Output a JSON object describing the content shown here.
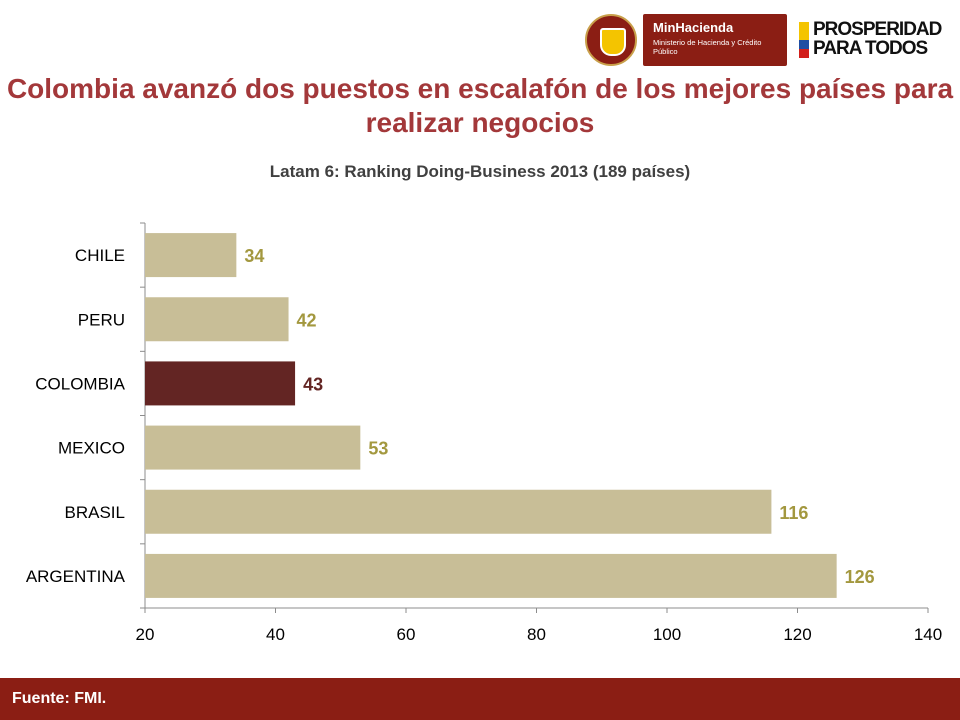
{
  "header": {
    "ministry_name": "MinHacienda",
    "ministry_sub": "Ministerio de Hacienda y Crédito Público",
    "slogan_line1": "PROSPERIDAD",
    "slogan_line2": "PARA TODOS"
  },
  "title": "Colombia avanzó dos puestos en escalafón de los mejores países para realizar negocios",
  "colors": {
    "default_bar": "#c8be97",
    "highlight_bar": "#632523",
    "label": "#a3983f",
    "highlight_label": "#632523"
  },
  "chart_data": {
    "type": "bar",
    "orientation": "horizontal",
    "title": "Latam 6: Ranking Doing-Business 2013 (189 países)",
    "categories": [
      "CHILE",
      "PERU",
      "COLOMBIA",
      "MEXICO",
      "BRASIL",
      "ARGENTINA"
    ],
    "values": [
      34,
      42,
      43,
      53,
      116,
      126
    ],
    "highlight": "COLOMBIA",
    "xlim": [
      20,
      140
    ],
    "xticks": [
      20,
      40,
      60,
      80,
      100,
      120,
      140
    ],
    "xlabel": "",
    "ylabel": "",
    "grid": false,
    "legend": "none"
  },
  "footer": {
    "source": "Fuente: FMI."
  }
}
